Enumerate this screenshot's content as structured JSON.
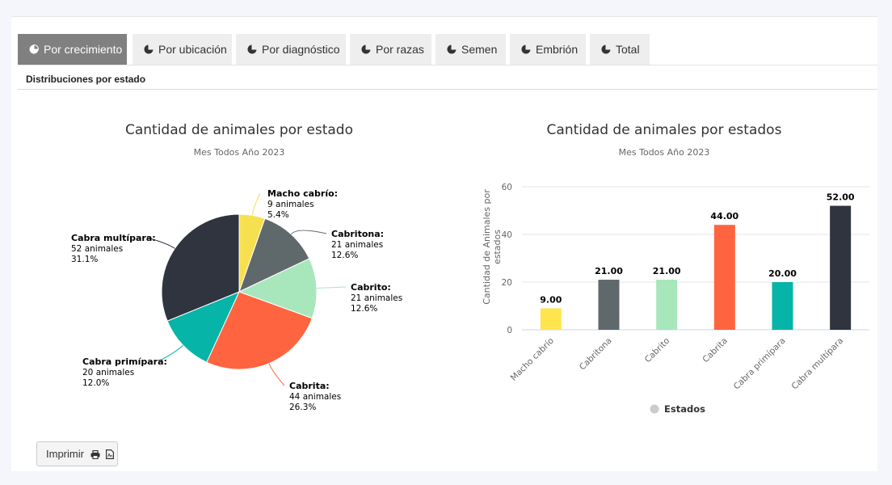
{
  "tabs": [
    {
      "label": "Por crecimiento",
      "active": true
    },
    {
      "label": "Por ubicación",
      "active": false
    },
    {
      "label": "Por diagnóstico",
      "active": false
    },
    {
      "label": "Por razas",
      "active": false
    },
    {
      "label": "Semen",
      "active": false
    },
    {
      "label": "Embrión",
      "active": false
    },
    {
      "label": "Total",
      "active": false
    }
  ],
  "section_title": "Distribuciones por estado",
  "print_button": {
    "label": "Imprimir"
  },
  "chart_data": [
    {
      "type": "pie",
      "title": "Cantidad de animales por estado",
      "subtitle": "Mes Todos Año 2023",
      "slices": [
        {
          "label": "Macho cabrío",
          "value": 9,
          "value_text": "9 animales",
          "percent": "5.4%",
          "color": "#f7e04f"
        },
        {
          "label": "Cabritona",
          "value": 21,
          "value_text": "21 animales",
          "percent": "12.6%",
          "color": "#5f686b"
        },
        {
          "label": "Cabrito",
          "value": 21,
          "value_text": "21 animales",
          "percent": "12.6%",
          "color": "#a8e6bc"
        },
        {
          "label": "Cabrita",
          "value": 44,
          "value_text": "44 animales",
          "percent": "26.3%",
          "color": "#ff6440"
        },
        {
          "label": "Cabra primípara",
          "value": 20,
          "value_text": "20 animales",
          "percent": "12.0%",
          "color": "#06b4a8"
        },
        {
          "label": "Cabra multípara",
          "value": 52,
          "value_text": "52 animales",
          "percent": "31.1%",
          "color": "#2f343e"
        }
      ]
    },
    {
      "type": "bar",
      "title": "Cantidad de animales por estados",
      "subtitle": "Mes Todos Año 2023",
      "ylabel": "Cantidad de Animales por estados",
      "ylim": [
        0,
        60
      ],
      "yticks": [
        0,
        20,
        40,
        60
      ],
      "legend": "Estados",
      "categories": [
        "Macho cabrío",
        "Cabritona",
        "Cabrito",
        "Cabrita",
        "Cabra primípara",
        "Cabra multípara"
      ],
      "values": [
        9,
        21,
        21,
        44,
        20,
        52
      ],
      "value_labels": [
        "9.00",
        "21.00",
        "21.00",
        "44.00",
        "20.00",
        "52.00"
      ],
      "colors": [
        "#ffe44d",
        "#5f686b",
        "#a8e6bc",
        "#ff6440",
        "#06b4a8",
        "#2f343e"
      ]
    }
  ]
}
